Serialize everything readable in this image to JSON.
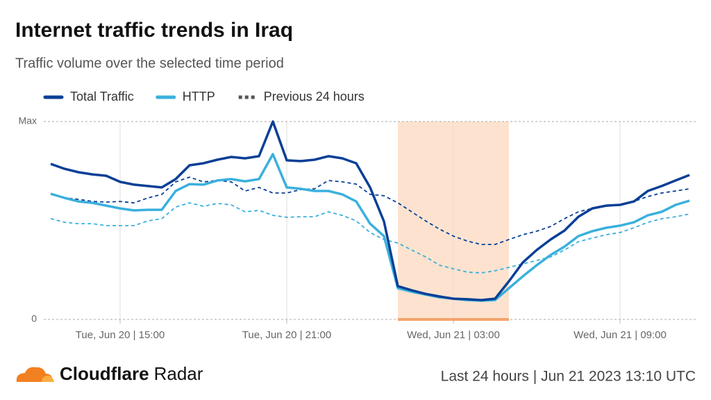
{
  "chart_data": {
    "type": "line",
    "title": "Internet traffic trends in Iraq",
    "subtitle": "Traffic volume over the selected time period",
    "x": [
      "2023-06-20T12:30",
      "2023-06-20T13:00",
      "2023-06-20T13:30",
      "2023-06-20T14:00",
      "2023-06-20T14:30",
      "2023-06-20T15:00",
      "2023-06-20T15:30",
      "2023-06-20T16:00",
      "2023-06-20T16:30",
      "2023-06-20T17:00",
      "2023-06-20T17:30",
      "2023-06-20T18:00",
      "2023-06-20T18:30",
      "2023-06-20T19:00",
      "2023-06-20T19:30",
      "2023-06-20T20:00",
      "2023-06-20T20:30",
      "2023-06-20T21:00",
      "2023-06-20T21:30",
      "2023-06-20T22:00",
      "2023-06-20T22:30",
      "2023-06-20T23:00",
      "2023-06-20T23:30",
      "2023-06-21T00:00",
      "2023-06-21T00:30",
      "2023-06-21T01:00",
      "2023-06-21T01:30",
      "2023-06-21T02:00",
      "2023-06-21T02:30",
      "2023-06-21T03:00",
      "2023-06-21T03:30",
      "2023-06-21T04:00",
      "2023-06-21T04:30",
      "2023-06-21T05:00",
      "2023-06-21T05:30",
      "2023-06-21T06:00",
      "2023-06-21T06:30",
      "2023-06-21T07:00",
      "2023-06-21T07:30",
      "2023-06-21T08:00",
      "2023-06-21T08:30",
      "2023-06-21T09:00",
      "2023-06-21T09:30",
      "2023-06-21T10:00",
      "2023-06-21T10:30",
      "2023-06-21T11:00",
      "2023-06-21T11:30"
    ],
    "series": [
      {
        "name": "Total Traffic",
        "color": "#0a3f96",
        "width": 3.5,
        "dash": false,
        "values": [
          78.6,
          76.1,
          74.4,
          73.3,
          72.6,
          69.5,
          68.1,
          67.4,
          66.7,
          70.9,
          77.9,
          78.9,
          80.7,
          82.1,
          81.4,
          82.5,
          100,
          80.4,
          80,
          80.7,
          82.5,
          81.4,
          78.9,
          66.7,
          49.5,
          16.8,
          14.7,
          12.9,
          11.6,
          10.5,
          10.2,
          9.8,
          10.5,
          19.3,
          28.8,
          35.1,
          40.4,
          44.9,
          51.9,
          56.1,
          57.5,
          57.9,
          59.6,
          64.9,
          67.4,
          70.2,
          73.0
        ]
      },
      {
        "name": "HTTP",
        "color": "#3ab0dd",
        "width": 3.5,
        "dash": false,
        "values": [
          63.5,
          61.4,
          59.6,
          58.9,
          57.5,
          56.1,
          55.1,
          55.4,
          55.4,
          64.9,
          68.4,
          68.1,
          70.2,
          70.9,
          69.8,
          70.9,
          83.5,
          66.7,
          66.0,
          64.9,
          64.9,
          63.2,
          59.6,
          48.4,
          42.1,
          15.8,
          14.0,
          12.6,
          11.2,
          10.5,
          9.8,
          9.5,
          9.8,
          15.8,
          21.8,
          27.4,
          32.6,
          36.8,
          42.1,
          44.6,
          46.3,
          47.4,
          49.1,
          52.6,
          54.4,
          57.9,
          60.0
        ]
      },
      {
        "name": "Previous 24 hours",
        "color": "#0a3f96",
        "legend_color": "#555555",
        "width": 1.8,
        "dash": true,
        "values": [
          63.2,
          61.4,
          60.7,
          59.6,
          59.3,
          59.6,
          58.9,
          61.4,
          63.2,
          69.5,
          71.9,
          69.5,
          70.2,
          69.5,
          64.9,
          66.7,
          63.9,
          63.9,
          65.6,
          66.0,
          70.2,
          69.5,
          68.4,
          63.2,
          62.5,
          58.9,
          54.4,
          49.8,
          45.6,
          42.1,
          39.6,
          37.9,
          37.9,
          40.4,
          42.8,
          44.6,
          47.0,
          50.9,
          54.4,
          56.1,
          57.2,
          57.9,
          59.6,
          62.1,
          63.9,
          64.9,
          66.0
        ]
      },
      {
        "color": "#3ab0dd",
        "width": 1.8,
        "dash": true,
        "values": [
          50.9,
          49.1,
          48.4,
          48.4,
          47.4,
          47.4,
          47.4,
          49.8,
          50.9,
          56.8,
          58.9,
          57.2,
          58.6,
          57.9,
          54.4,
          55.1,
          52.6,
          51.6,
          51.9,
          51.9,
          54.4,
          52.6,
          49.8,
          43.9,
          40.4,
          38.6,
          35.1,
          31.6,
          27.4,
          25.6,
          23.9,
          23.5,
          24.6,
          26.3,
          28.1,
          29.8,
          31.6,
          35.1,
          39.3,
          41.1,
          42.8,
          43.9,
          46.3,
          49.1,
          50.9,
          51.9,
          53.3
        ]
      }
    ],
    "xlim": [
      "2023-06-20T12:15",
      "2023-06-21T11:45"
    ],
    "xticks": [
      {
        "value": "2023-06-20T15:00",
        "label": "Tue, Jun 20 | 15:00"
      },
      {
        "value": "2023-06-20T21:00",
        "label": "Tue, Jun 20 | 21:00"
      },
      {
        "value": "2023-06-21T03:00",
        "label": "Wed, Jun 21 | 03:00"
      },
      {
        "value": "2023-06-21T09:00",
        "label": "Wed, Jun 21 | 09:00"
      }
    ],
    "ylim": [
      0,
      100
    ],
    "yticks": [
      0,
      {
        "value": 100,
        "label": "Max"
      }
    ],
    "highlight": {
      "start": "2023-06-21T01:00",
      "end": "2023-06-21T05:00",
      "color": "#fde3cf",
      "edge_color": "#f4a46c"
    },
    "grid": true,
    "legend": "top-left"
  },
  "footer": {
    "brand": "Cloudflare",
    "product": "Radar",
    "caption": "Last 24 hours | Jun 21 2023 13:10 UTC"
  }
}
